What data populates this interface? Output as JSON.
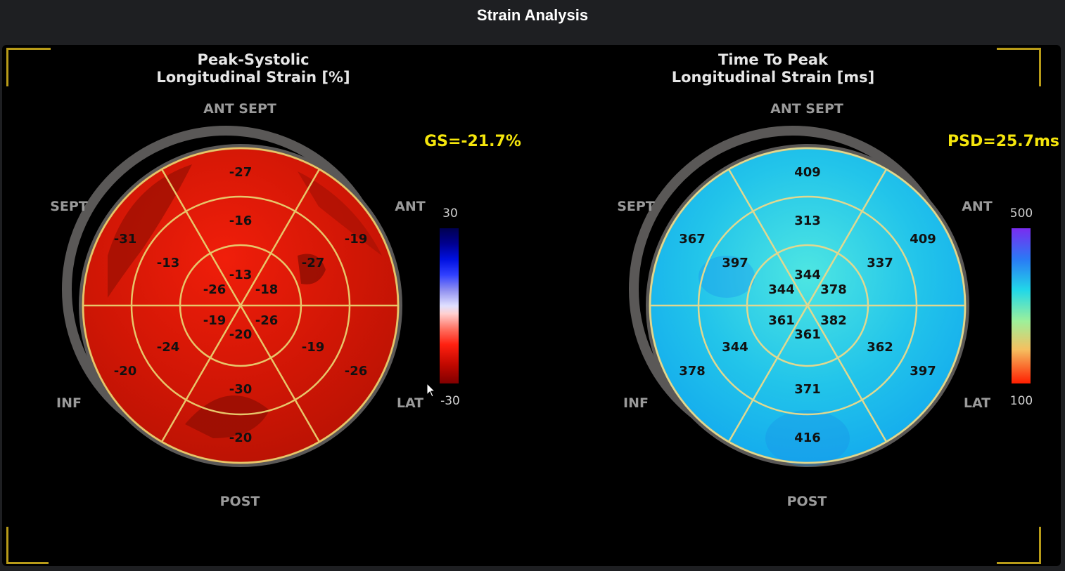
{
  "window": {
    "title": "Strain Analysis"
  },
  "colors": {
    "accent": "#f5e60c",
    "corner": "#b89b18",
    "label_gray": "#9a9a9a",
    "ring": "#5a5857",
    "seg_line": "#e8c66a"
  },
  "orientation": {
    "top": "ANT SEPT",
    "left_top": "SEPT",
    "right_top": "ANT",
    "left_bottom": "INF",
    "right_bottom": "LAT",
    "bottom": "POST"
  },
  "left_plot": {
    "title_line1": "Peak-Systolic",
    "title_line2": "Longitudinal Strain [%]",
    "global_label": "GS=-21.7%",
    "scale_max": "30",
    "scale_min": "-30",
    "segments": {
      "outer": [
        "-27",
        "-19",
        "-26",
        "-20",
        "-20",
        "-31"
      ],
      "middle": [
        "-16",
        "-27",
        "-19",
        "-30",
        "-24",
        "-13"
      ],
      "inner": [
        "-13",
        "-18",
        "-26",
        "-20",
        "-19",
        "-26"
      ]
    }
  },
  "right_plot": {
    "title_line1": "Time To Peak",
    "title_line2": "Longitudinal Strain [ms]",
    "global_label": "PSD=25.7ms",
    "scale_max": "500",
    "scale_min": "100",
    "segments": {
      "outer": [
        "409",
        "409",
        "397",
        "416",
        "378",
        "367"
      ],
      "middle": [
        "313",
        "337",
        "362",
        "371",
        "344",
        "397"
      ],
      "inner": [
        "344",
        "378",
        "382",
        "361",
        "361",
        "344"
      ]
    }
  }
}
